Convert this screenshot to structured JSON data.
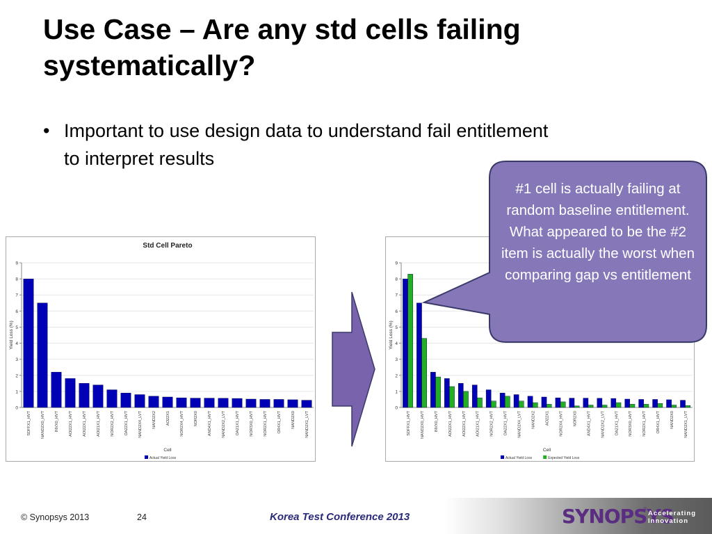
{
  "slide": {
    "title": "Use Case – Are any std cells failing systematically?",
    "bullet": "Important to use design data to understand fail entitlement to interpret results",
    "callout": "#1 cell is actually failing at random baseline entitlement.  What appeared to be the #2 item is actually the worst when comparing gap vs entitlement"
  },
  "colors": {
    "actual": "#0000b4",
    "expected": "#22b022",
    "callout_fill": "#8577b8",
    "callout_border": "#3a3a6a",
    "arrow_fill": "#7a63ad"
  },
  "footer": {
    "copyright": "© Synopsys 2013",
    "page": "24",
    "conference": "Korea Test Conference 2013",
    "logo": "SYNOPSYS",
    "logo_mark": "®",
    "tagline_1": "Accelerating",
    "tagline_2": "Innovation"
  },
  "chart_data": [
    {
      "type": "bar",
      "title": "Std Cell Pareto",
      "xlabel": "Cell",
      "ylabel": "Yield Loss (%)",
      "ylim": [
        0,
        9
      ],
      "yticks": [
        "0",
        "1",
        "2",
        "3",
        "4",
        "5",
        "6",
        "7",
        "8",
        "9"
      ],
      "categories": [
        "SDFFX1_HVT",
        "NAND2X0_HVT",
        "INVX0_HVT",
        "AOI22X1_HVT",
        "AOI22X1_HVT",
        "AOI21X1_HVT",
        "NOR2X2_HVT",
        "OA22X1_HVT",
        "NAND2X4_LVT",
        "NAND2X2",
        "AO22X1",
        "NOR2X4_HVT",
        "NOR2X0",
        "AND4X1_HVT",
        "NAND2X2_LVT",
        "OA21X1_HVT",
        "NOR3X0_HVT",
        "NOR2X1_HVT",
        "OR4X1_HVT",
        "NAND2X0",
        "NAND2X1_LVT"
      ],
      "series": [
        {
          "name": "Actual Yield Loss",
          "values": [
            8.0,
            6.5,
            2.2,
            1.8,
            1.5,
            1.4,
            1.1,
            0.9,
            0.8,
            0.7,
            0.65,
            0.6,
            0.58,
            0.58,
            0.57,
            0.56,
            0.52,
            0.5,
            0.5,
            0.48,
            0.45
          ]
        }
      ],
      "legend": "bottom"
    },
    {
      "type": "bar",
      "title": "",
      "xlabel": "Cell",
      "ylabel": "Yield Loss (%)",
      "ylim": [
        0,
        9
      ],
      "yticks": [
        "0",
        "1",
        "2",
        "3",
        "4",
        "5",
        "6",
        "7",
        "8",
        "9"
      ],
      "categories": [
        "SDFFX1_HVT",
        "NAND2X0_HVT",
        "INVX0_HVT",
        "AOI22X1_HVT",
        "AOI22X1_HVT",
        "AOI21X1_HVT",
        "NOR2X2_HVT",
        "OA22X1_HVT",
        "NAND2X4_LVT",
        "NAND2X2",
        "AO22X1",
        "NOR2X4_HVT",
        "NOR2X0",
        "AND4X1_HVT",
        "NAND2X2_LVT",
        "OA21X1_HVT",
        "NOR3X0_HVT",
        "NOR2X1_HVT",
        "OR4X1_HVT",
        "NAND2X0",
        "NAND2X1_LVT"
      ],
      "series": [
        {
          "name": "Actual Yield Loss",
          "values": [
            8.0,
            6.5,
            2.2,
            1.8,
            1.5,
            1.4,
            1.1,
            0.9,
            0.8,
            0.7,
            0.65,
            0.6,
            0.58,
            0.58,
            0.57,
            0.56,
            0.52,
            0.5,
            0.5,
            0.48,
            0.45
          ]
        },
        {
          "name": "Expected Yield Loss",
          "values": [
            8.3,
            4.3,
            1.9,
            1.3,
            1.0,
            0.6,
            0.4,
            0.7,
            0.4,
            0.3,
            0.2,
            0.35,
            0.1,
            0.15,
            0.15,
            0.3,
            0.2,
            0.2,
            0.25,
            0.15,
            0.12
          ]
        }
      ],
      "legend": "bottom"
    }
  ]
}
